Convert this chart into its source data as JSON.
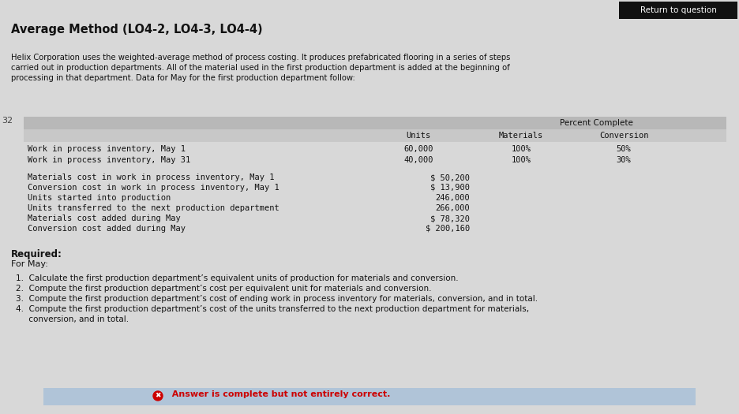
{
  "title": "Average Method (LO4-2, LO4-3, LO4-4)",
  "return_btn": "Return to question",
  "intro_text_line1": "Helix Corporation uses the weighted-average method of process costing. It produces prefabricated flooring in a series of steps",
  "intro_text_line2": "carried out in production departments. All of the material used in the first production department is added at the beginning of",
  "intro_text_line3": "processing in that department. Data for May for the first production department follow:",
  "page_num": "32",
  "table_header_pct": "Percent Complete",
  "table_header_units": "Units",
  "table_header_mat": "Materials",
  "table_header_conv": "Conversion",
  "table_row1_label": "Work in process inventory, May 1",
  "table_row1_units": "60,000",
  "table_row1_mat": "100%",
  "table_row1_conv": "50%",
  "table_row2_label": "Work in process inventory, May 31",
  "table_row2_units": "40,000",
  "table_row2_mat": "100%",
  "table_row2_conv": "30%",
  "data_rows": [
    {
      "label": "Materials cost in work in process inventory, May 1",
      "value": "$ 50,200"
    },
    {
      "label": "Conversion cost in work in process inventory, May 1",
      "value": "$ 13,900"
    },
    {
      "label": "Units started into production",
      "value": "246,000"
    },
    {
      "label": "Units transferred to the next production department",
      "value": "266,000"
    },
    {
      "label": "Materials cost added during May",
      "value": "$ 78,320"
    },
    {
      "label": "Conversion cost added during May",
      "value": "$ 200,160"
    }
  ],
  "required_label": "Required:",
  "for_may_label": "For May:",
  "req_items": [
    "1.  Calculate the first production department’s equivalent units of production for materials and conversion.",
    "2.  Compute the first production department’s cost per equivalent unit for materials and conversion.",
    "3.  Compute the first production department’s cost of ending work in process inventory for materials, conversion, and in total.",
    "4.  Compute the first production department’s cost of the units transferred to the next production department for materials,",
    "     conversion, and in total."
  ],
  "answer_symbol": "✖",
  "answer_text": "  Answer is complete but not entirely correct.",
  "body_bg": "#d8d8d8",
  "table_bg": "#c8c8c8",
  "answer_bg": "#b0c4d8",
  "return_btn_bg": "#111111",
  "return_btn_text_color": "#ffffff",
  "text_color": "#111111",
  "answer_red": "#cc0000"
}
